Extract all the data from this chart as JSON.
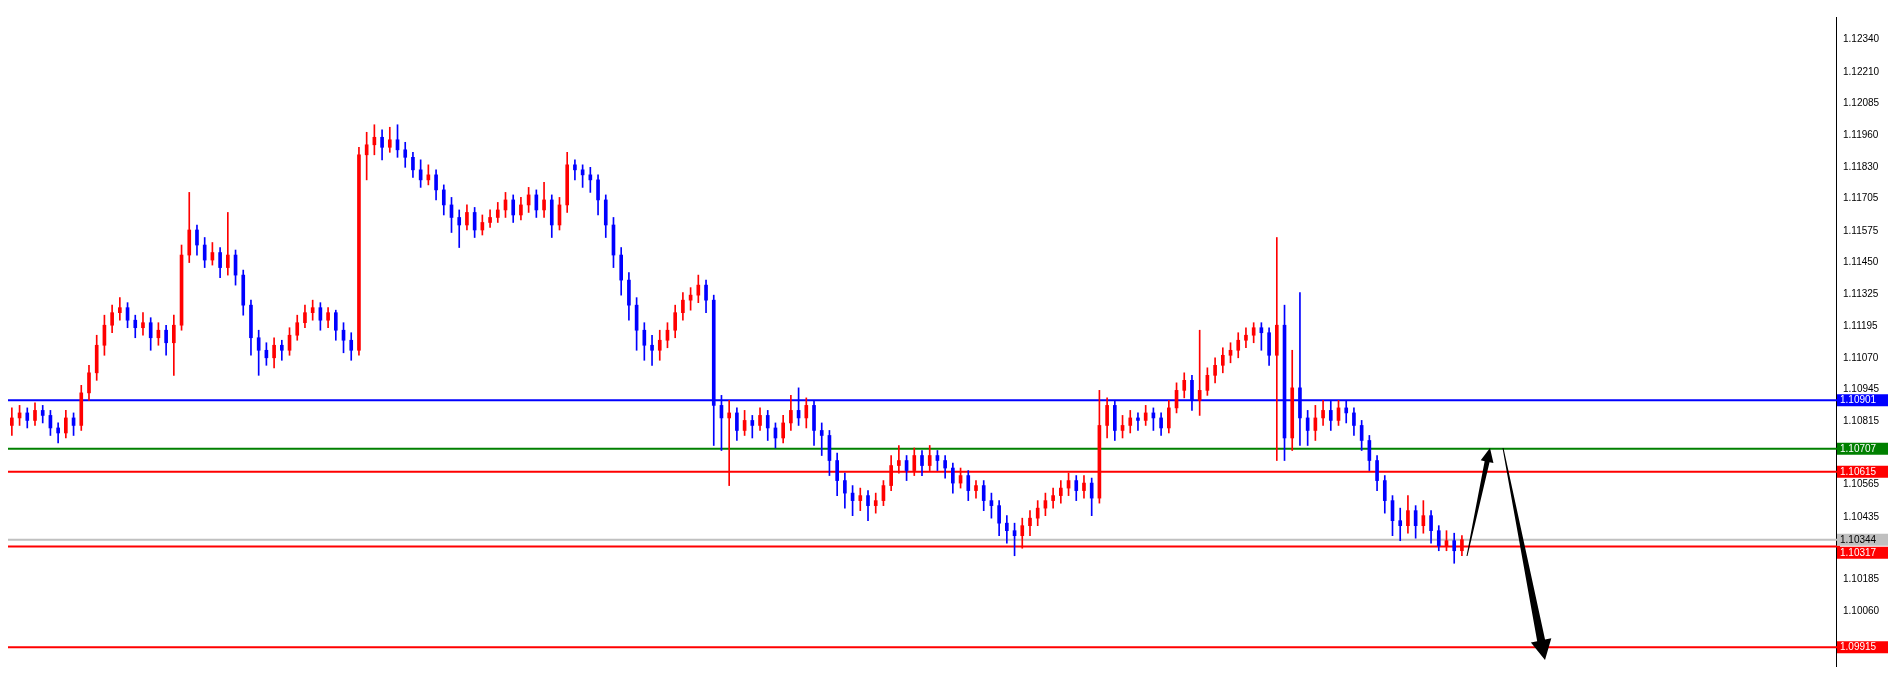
{
  "chart_data": {
    "type": "candlestick",
    "tick_labels": "y",
    "categories": [
      null,
      null,
      null,
      null,
      null,
      null,
      null,
      null,
      null,
      null,
      null,
      null,
      null,
      null,
      null,
      null,
      null,
      null,
      null,
      null,
      null,
      null,
      null,
      null,
      null,
      null,
      null,
      null,
      null,
      null,
      null,
      null,
      null,
      null,
      null,
      null,
      null,
      null,
      null,
      null,
      null,
      null,
      null,
      null,
      null,
      null,
      null,
      null,
      null,
      null,
      null,
      null,
      null,
      null,
      null,
      null,
      null,
      null,
      null,
      null,
      null,
      null,
      null,
      null,
      null,
      null,
      null,
      null,
      null,
      null,
      null,
      null,
      null,
      null,
      null,
      null,
      null,
      null,
      null,
      null,
      null,
      null,
      null,
      null,
      null,
      null,
      null,
      null,
      null,
      null,
      null,
      null,
      null,
      null,
      null,
      null,
      null,
      null,
      null,
      null,
      null,
      null,
      null,
      null,
      null,
      null,
      null,
      null,
      null,
      null,
      null,
      null,
      null,
      null,
      null,
      null,
      null,
      null,
      null,
      null,
      null,
      null,
      null,
      null,
      null,
      null,
      null,
      null,
      null,
      null,
      null,
      null,
      null,
      null,
      null,
      null,
      null,
      null,
      null,
      null,
      null,
      null,
      null,
      null,
      null,
      null,
      null,
      null,
      null,
      null,
      null,
      null,
      null,
      null,
      null,
      null,
      null,
      null,
      null,
      null,
      null,
      null,
      null,
      null,
      null,
      null,
      null,
      null,
      null,
      null,
      null,
      null,
      null,
      null,
      null,
      null,
      null,
      null,
      null,
      null,
      null,
      null,
      null,
      null,
      null,
      null,
      null,
      null,
      null,
      null,
      null,
      null,
      null,
      null,
      null,
      null,
      null,
      null,
      null,
      null,
      null,
      null,
      null,
      null,
      null,
      null,
      null,
      null,
      null,
      null,
      null,
      null,
      null,
      null,
      null,
      null,
      null,
      null,
      null,
      null,
      null,
      null,
      null,
      null,
      null,
      null,
      null,
      null,
      null,
      null,
      null,
      null,
      null,
      null,
      null,
      null,
      null
    ],
    "ohlc": [
      [
        1.108,
        1.1087,
        1.1076,
        1.1083
      ],
      [
        1.1083,
        1.1088,
        1.108,
        1.1085
      ],
      [
        1.1085,
        1.1087,
        1.1079,
        1.1082
      ],
      [
        1.1082,
        1.1089,
        1.108,
        1.1086
      ],
      [
        1.1086,
        1.1088,
        1.1081,
        1.1084
      ],
      [
        1.1084,
        1.1086,
        1.1076,
        1.1079
      ],
      [
        1.1079,
        1.1081,
        1.1073,
        1.1077
      ],
      [
        1.1077,
        1.1086,
        1.1075,
        1.1083
      ],
      [
        1.1083,
        1.1085,
        1.1076,
        1.108
      ],
      [
        1.108,
        1.1096,
        1.1078,
        1.1093
      ],
      [
        1.1093,
        1.1104,
        1.109,
        1.1101
      ],
      [
        1.1101,
        1.1116,
        1.1098,
        1.1112
      ],
      [
        1.1112,
        1.1124,
        1.1108,
        1.112
      ],
      [
        1.112,
        1.1128,
        1.1117,
        1.1125
      ],
      [
        1.1125,
        1.1131,
        1.1122,
        1.1127
      ],
      [
        1.1127,
        1.1129,
        1.1119,
        1.1122
      ],
      [
        1.1122,
        1.1124,
        1.1115,
        1.1119
      ],
      [
        1.1119,
        1.1125,
        1.1116,
        1.1121
      ],
      [
        1.1121,
        1.1123,
        1.111,
        1.1115
      ],
      [
        1.1115,
        1.1121,
        1.1112,
        1.1118
      ],
      [
        1.1118,
        1.112,
        1.1108,
        1.1113
      ],
      [
        1.1113,
        1.1124,
        1.11,
        1.112
      ],
      [
        1.112,
        1.1152,
        1.1118,
        1.1148
      ],
      [
        1.1148,
        1.1173,
        1.1145,
        1.1158
      ],
      [
        1.1158,
        1.116,
        1.1148,
        1.1152
      ],
      [
        1.1152,
        1.1155,
        1.1143,
        1.1146
      ],
      [
        1.1146,
        1.1153,
        1.1144,
        1.1149
      ],
      [
        1.1149,
        1.1151,
        1.1139,
        1.1143
      ],
      [
        1.1143,
        1.1165,
        1.114,
        1.1148
      ],
      [
        1.1148,
        1.115,
        1.1136,
        1.114
      ],
      [
        1.114,
        1.1142,
        1.1124,
        1.1128
      ],
      [
        1.1128,
        1.113,
        1.1108,
        1.1115
      ],
      [
        1.1115,
        1.1118,
        1.11,
        1.111
      ],
      [
        1.111,
        1.1113,
        1.1104,
        1.1107
      ],
      [
        1.1107,
        1.1115,
        1.1103,
        1.1112
      ],
      [
        1.1112,
        1.1114,
        1.1106,
        1.111
      ],
      [
        1.111,
        1.1119,
        1.1108,
        1.1116
      ],
      [
        1.1116,
        1.1124,
        1.1114,
        1.1121
      ],
      [
        1.1121,
        1.1128,
        1.1119,
        1.1125
      ],
      [
        1.1125,
        1.113,
        1.1122,
        1.1127
      ],
      [
        1.1127,
        1.1129,
        1.1118,
        1.1122
      ],
      [
        1.1122,
        1.1127,
        1.1119,
        1.1125
      ],
      [
        1.1125,
        1.1126,
        1.1114,
        1.1118
      ],
      [
        1.1118,
        1.1121,
        1.1109,
        1.1114
      ],
      [
        1.1114,
        1.1117,
        1.1106,
        1.111
      ],
      [
        1.111,
        1.1191,
        1.1108,
        1.1188
      ],
      [
        1.1188,
        1.1197,
        1.1178,
        1.1192
      ],
      [
        1.1192,
        1.12,
        1.1188,
        1.1195
      ],
      [
        1.1195,
        1.1198,
        1.1186,
        1.1191
      ],
      [
        1.1191,
        1.1199,
        1.1189,
        1.1194
      ],
      [
        1.1194,
        1.12,
        1.1187,
        1.119
      ],
      [
        1.119,
        1.1193,
        1.1183,
        1.1187
      ],
      [
        1.1187,
        1.1189,
        1.1179,
        1.1182
      ],
      [
        1.1182,
        1.1186,
        1.1175,
        1.1178
      ],
      [
        1.1178,
        1.1184,
        1.1176,
        1.118
      ],
      [
        1.118,
        1.1182,
        1.117,
        1.1174
      ],
      [
        1.1174,
        1.1176,
        1.1164,
        1.1168
      ],
      [
        1.1168,
        1.1171,
        1.1157,
        1.1163
      ],
      [
        1.1163,
        1.1166,
        1.1151,
        1.116
      ],
      [
        1.116,
        1.1168,
        1.1158,
        1.1165
      ],
      [
        1.1165,
        1.1167,
        1.1155,
        1.1158
      ],
      [
        1.1158,
        1.1164,
        1.1156,
        1.1161
      ],
      [
        1.1161,
        1.1166,
        1.1159,
        1.1163
      ],
      [
        1.1163,
        1.1169,
        1.1161,
        1.1166
      ],
      [
        1.1166,
        1.1173,
        1.1163,
        1.117
      ],
      [
        1.117,
        1.1172,
        1.1161,
        1.1164
      ],
      [
        1.1164,
        1.1171,
        1.1162,
        1.1168
      ],
      [
        1.1168,
        1.1175,
        1.1165,
        1.1172
      ],
      [
        1.1172,
        1.1174,
        1.1163,
        1.1166
      ],
      [
        1.1166,
        1.1177,
        1.1163,
        1.117
      ],
      [
        1.117,
        1.1172,
        1.1155,
        1.116
      ],
      [
        1.116,
        1.1171,
        1.1158,
        1.1168
      ],
      [
        1.1168,
        1.1189,
        1.1165,
        1.1184
      ],
      [
        1.1184,
        1.1186,
        1.1178,
        1.1182
      ],
      [
        1.1182,
        1.1184,
        1.1175,
        1.118
      ],
      [
        1.118,
        1.1183,
        1.1173,
        1.1178
      ],
      [
        1.1178,
        1.118,
        1.1164,
        1.117
      ],
      [
        1.117,
        1.1172,
        1.1155,
        1.116
      ],
      [
        1.116,
        1.1163,
        1.1143,
        1.1148
      ],
      [
        1.1148,
        1.1151,
        1.1132,
        1.1138
      ],
      [
        1.1138,
        1.1141,
        1.1122,
        1.1128
      ],
      [
        1.1128,
        1.1131,
        1.111,
        1.1118
      ],
      [
        1.1118,
        1.1121,
        1.1106,
        1.1112
      ],
      [
        1.1112,
        1.1116,
        1.1104,
        1.111
      ],
      [
        1.111,
        1.1118,
        1.1106,
        1.1114
      ],
      [
        1.1114,
        1.1121,
        1.1111,
        1.1118
      ],
      [
        1.1118,
        1.1128,
        1.1115,
        1.1125
      ],
      [
        1.1125,
        1.1133,
        1.1122,
        1.113
      ],
      [
        1.113,
        1.1135,
        1.1126,
        1.1132
      ],
      [
        1.1132,
        1.114,
        1.1129,
        1.1136
      ],
      [
        1.1136,
        1.1138,
        1.1125,
        1.113
      ],
      [
        1.113,
        1.1132,
        1.1072,
        1.1088
      ],
      [
        1.1088,
        1.1092,
        1.107,
        1.1083
      ],
      [
        1.1083,
        1.109,
        1.1056,
        1.1085
      ],
      [
        1.1085,
        1.1087,
        1.1074,
        1.1078
      ],
      [
        1.1078,
        1.1086,
        1.1076,
        1.1082
      ],
      [
        1.1082,
        1.1084,
        1.1075,
        1.108
      ],
      [
        1.108,
        1.1087,
        1.1078,
        1.1084
      ],
      [
        1.1084,
        1.1086,
        1.1074,
        1.1079
      ],
      [
        1.1079,
        1.1081,
        1.1071,
        1.1075
      ],
      [
        1.1075,
        1.1084,
        1.1073,
        1.1081
      ],
      [
        1.1081,
        1.1092,
        1.1078,
        1.1086
      ],
      [
        1.1086,
        1.1095,
        1.108,
        1.1083
      ],
      [
        1.1083,
        1.1091,
        1.1079,
        1.1088
      ],
      [
        1.1088,
        1.109,
        1.1072,
        1.1078
      ],
      [
        1.1078,
        1.1081,
        1.1068,
        1.1076
      ],
      [
        1.1076,
        1.1078,
        1.106,
        1.1066
      ],
      [
        1.1066,
        1.1069,
        1.1052,
        1.1058
      ],
      [
        1.1058,
        1.1061,
        1.1047,
        1.1053
      ],
      [
        1.1053,
        1.1056,
        1.1044,
        1.105
      ],
      [
        1.105,
        1.1055,
        1.1046,
        1.1052
      ],
      [
        1.1052,
        1.1054,
        1.1042,
        1.1048
      ],
      [
        1.1048,
        1.1053,
        1.1045,
        1.105
      ],
      [
        1.105,
        1.1058,
        1.1048,
        1.1056
      ],
      [
        1.1056,
        1.1068,
        1.1054,
        1.1064
      ],
      [
        1.1064,
        1.1072,
        1.1061,
        1.1066
      ],
      [
        1.1066,
        1.1068,
        1.1058,
        1.1062
      ],
      [
        1.1062,
        1.1071,
        1.106,
        1.1068
      ],
      [
        1.1068,
        1.107,
        1.106,
        1.1064
      ],
      [
        1.1064,
        1.1072,
        1.1062,
        1.1068
      ],
      [
        1.1068,
        1.107,
        1.1062,
        1.1066
      ],
      [
        1.1066,
        1.1068,
        1.1059,
        1.1063
      ],
      [
        1.1063,
        1.1065,
        1.1053,
        1.1057
      ],
      [
        1.1057,
        1.1063,
        1.1055,
        1.106
      ],
      [
        1.106,
        1.1062,
        1.105,
        1.1054
      ],
      [
        1.1054,
        1.1058,
        1.1051,
        1.1056
      ],
      [
        1.1056,
        1.1058,
        1.1046,
        1.105
      ],
      [
        1.105,
        1.1053,
        1.1043,
        1.1048
      ],
      [
        1.1048,
        1.105,
        1.1036,
        1.1041
      ],
      [
        1.1041,
        1.1044,
        1.1033,
        1.1038
      ],
      [
        1.1038,
        1.1041,
        1.1028,
        1.1036
      ],
      [
        1.1036,
        1.1043,
        1.1031,
        1.104
      ],
      [
        1.104,
        1.1046,
        1.1036,
        1.1043
      ],
      [
        1.1043,
        1.105,
        1.104,
        1.1047
      ],
      [
        1.1047,
        1.1053,
        1.1044,
        1.105
      ],
      [
        1.105,
        1.1055,
        1.1047,
        1.1052
      ],
      [
        1.1052,
        1.1058,
        1.1049,
        1.1055
      ],
      [
        1.1055,
        1.1061,
        1.1052,
        1.1058
      ],
      [
        1.1058,
        1.106,
        1.105,
        1.1054
      ],
      [
        1.1054,
        1.106,
        1.1051,
        1.1057
      ],
      [
        1.1057,
        1.1059,
        1.1044,
        1.1051
      ],
      [
        1.1051,
        1.1094,
        1.1049,
        1.108
      ],
      [
        1.108,
        1.1091,
        1.1075,
        1.1088
      ],
      [
        1.1088,
        1.109,
        1.1074,
        1.1078
      ],
      [
        1.1078,
        1.1084,
        1.1075,
        1.108
      ],
      [
        1.108,
        1.1086,
        1.1077,
        1.1083
      ],
      [
        1.1083,
        1.1085,
        1.1078,
        1.1082
      ],
      [
        1.1082,
        1.1088,
        1.108,
        1.1085
      ],
      [
        1.1085,
        1.1087,
        1.1078,
        1.1083
      ],
      [
        1.1083,
        1.1085,
        1.1076,
        1.1079
      ],
      [
        1.1079,
        1.109,
        1.1077,
        1.1087
      ],
      [
        1.1087,
        1.1097,
        1.1085,
        1.1094
      ],
      [
        1.1094,
        1.1101,
        1.1091,
        1.1098
      ],
      [
        1.1098,
        1.11,
        1.1086,
        1.109
      ],
      [
        1.109,
        1.1118,
        1.1084,
        1.1094
      ],
      [
        1.1094,
        1.1103,
        1.1092,
        1.11
      ],
      [
        1.11,
        1.1107,
        1.1097,
        1.1104
      ],
      [
        1.1104,
        1.1111,
        1.1101,
        1.1108
      ],
      [
        1.1108,
        1.1113,
        1.1105,
        1.111
      ],
      [
        1.111,
        1.1117,
        1.1107,
        1.1114
      ],
      [
        1.1114,
        1.1119,
        1.1111,
        1.1116
      ],
      [
        1.1116,
        1.1121,
        1.1113,
        1.1119
      ],
      [
        1.1119,
        1.1121,
        1.111,
        1.1117
      ],
      [
        1.1117,
        1.1119,
        1.1104,
        1.1108
      ],
      [
        1.1108,
        1.1155,
        1.1066,
        1.112
      ],
      [
        1.112,
        1.1128,
        1.1066,
        1.1075
      ],
      [
        1.1075,
        1.111,
        1.107,
        1.1095
      ],
      [
        1.1095,
        1.1133,
        1.1072,
        1.1083
      ],
      [
        1.1083,
        1.1086,
        1.1072,
        1.1078
      ],
      [
        1.1078,
        1.1088,
        1.1074,
        1.1083
      ],
      [
        1.1083,
        1.109,
        1.108,
        1.1086
      ],
      [
        1.1086,
        1.109,
        1.1078,
        1.1082
      ],
      [
        1.1082,
        1.109,
        1.108,
        1.1087
      ],
      [
        1.1087,
        1.109,
        1.1081,
        1.1085
      ],
      [
        1.1085,
        1.1087,
        1.1076,
        1.108
      ],
      [
        1.108,
        1.1082,
        1.107,
        1.1074
      ],
      [
        1.1074,
        1.1076,
        1.1062,
        1.1066
      ],
      [
        1.1066,
        1.1068,
        1.1054,
        1.1058
      ],
      [
        1.1058,
        1.106,
        1.1045,
        1.105
      ],
      [
        1.105,
        1.1052,
        1.1036,
        1.1042
      ],
      [
        1.1042,
        1.1047,
        1.1034,
        1.104
      ],
      [
        1.104,
        1.1052,
        1.1037,
        1.1046
      ],
      [
        1.1046,
        1.1048,
        1.1035,
        1.104
      ],
      [
        1.104,
        1.105,
        1.1037,
        1.1044
      ],
      [
        1.1044,
        1.1046,
        1.1033,
        1.1038
      ],
      [
        1.1038,
        1.104,
        1.103,
        1.1032
      ],
      [
        1.1032,
        1.1038,
        1.103,
        1.1034
      ],
      [
        1.1034,
        1.1037,
        1.1025,
        1.103
      ],
      [
        1.103,
        1.1036,
        1.1028,
        1.10344
      ],
      null,
      null,
      null,
      null,
      null,
      null,
      null,
      null,
      null,
      null,
      null,
      null,
      null,
      null,
      null,
      null,
      null,
      null,
      null,
      null,
      null,
      null,
      null,
      null,
      null,
      null,
      null,
      null,
      null,
      null,
      null,
      null,
      null,
      null,
      null,
      null,
      null,
      null,
      null,
      null,
      null,
      null,
      null,
      null,
      null,
      null,
      null,
      null
    ],
    "colors": [
      "#ff0000",
      "#ff0000",
      "#0000ff",
      "#ff0000",
      "#0000ff",
      "#0000ff",
      "#0000ff",
      "#ff0000",
      "#0000ff",
      "#ff0000",
      "#ff0000",
      "#ff0000",
      "#ff0000",
      "#ff0000",
      "#ff0000",
      "#0000ff",
      "#0000ff",
      "#ff0000",
      "#0000ff",
      "#ff0000",
      "#0000ff",
      "#ff0000",
      "#ff0000",
      "#ff0000",
      "#0000ff",
      "#0000ff",
      "#ff0000",
      "#0000ff",
      "#ff0000",
      "#0000ff",
      "#0000ff",
      "#0000ff",
      "#0000ff",
      "#0000ff",
      "#ff0000",
      "#0000ff",
      "#ff0000",
      "#ff0000",
      "#ff0000",
      "#ff0000",
      "#0000ff",
      "#ff0000",
      "#0000ff",
      "#0000ff",
      "#0000ff",
      "#ff0000",
      "#ff0000",
      "#ff0000",
      "#0000ff",
      "#ff0000",
      "#0000ff",
      "#0000ff",
      "#0000ff",
      "#0000ff",
      "#ff0000",
      "#0000ff",
      "#0000ff",
      "#0000ff",
      "#0000ff",
      "#ff0000",
      "#0000ff",
      "#ff0000",
      "#ff0000",
      "#ff0000",
      "#ff0000",
      "#0000ff",
      "#ff0000",
      "#ff0000",
      "#0000ff",
      "#ff0000",
      "#0000ff",
      "#ff0000",
      "#ff0000",
      "#0000ff",
      "#0000ff",
      "#0000ff",
      "#0000ff",
      "#0000ff",
      "#0000ff",
      "#0000ff",
      "#0000ff",
      "#0000ff",
      "#0000ff",
      "#0000ff",
      "#ff0000",
      "#ff0000",
      "#ff0000",
      "#ff0000",
      "#ff0000",
      "#ff0000",
      "#0000ff",
      "#0000ff",
      "#0000ff",
      "#ff0000",
      "#0000ff",
      "#ff0000",
      "#0000ff",
      "#ff0000",
      "#0000ff",
      "#0000ff",
      "#ff0000",
      "#ff0000",
      "#0000ff",
      "#ff0000",
      "#0000ff",
      "#0000ff",
      "#0000ff",
      "#0000ff",
      "#0000ff",
      "#0000ff",
      "#ff0000",
      "#0000ff",
      "#ff0000",
      "#ff0000",
      "#ff0000",
      "#ff0000",
      "#0000ff",
      "#ff0000",
      "#0000ff",
      "#ff0000",
      "#0000ff",
      "#0000ff",
      "#0000ff",
      "#ff0000",
      "#0000ff",
      "#ff0000",
      "#0000ff",
      "#0000ff",
      "#0000ff",
      "#0000ff",
      "#0000ff",
      "#ff0000",
      "#ff0000",
      "#ff0000",
      "#ff0000",
      "#ff0000",
      "#ff0000",
      "#ff0000",
      "#0000ff",
      "#ff0000",
      "#0000ff",
      "#ff0000",
      "#ff0000",
      "#0000ff",
      "#ff0000",
      "#ff0000",
      "#0000ff",
      "#ff0000",
      "#0000ff",
      "#0000ff",
      "#ff0000",
      "#ff0000",
      "#ff0000",
      "#0000ff",
      "#ff0000",
      "#ff0000",
      "#ff0000",
      "#ff0000",
      "#ff0000",
      "#ff0000",
      "#ff0000",
      "#ff0000",
      "#0000ff",
      "#0000ff",
      "#ff0000",
      "#0000ff",
      "#ff0000",
      "#0000ff",
      "#0000ff",
      "#ff0000",
      "#ff0000",
      "#0000ff",
      "#ff0000",
      "#0000ff",
      "#0000ff",
      "#0000ff",
      "#0000ff",
      "#0000ff",
      "#0000ff",
      "#0000ff",
      "#0000ff",
      "#ff0000",
      "#0000ff",
      "#ff0000",
      "#0000ff",
      "#0000ff",
      "#ff0000",
      "#0000ff",
      "#ff0000",
      null,
      null,
      null,
      null,
      null,
      null,
      null,
      null,
      null,
      null,
      null,
      null,
      null,
      null,
      null,
      null,
      null,
      null,
      null,
      null,
      null,
      null,
      null,
      null,
      null,
      null,
      null,
      null,
      null,
      null,
      null,
      null,
      null,
      null,
      null,
      null,
      null,
      null,
      null,
      null,
      null,
      null,
      null,
      null,
      null,
      null,
      null,
      null
    ],
    "ylim": [
      1.0984,
      1.1243
    ],
    "yticks": [
      {
        "value": 1.1234,
        "label": "1.12340"
      },
      {
        "value": 1.1221,
        "label": "1.12210"
      },
      1.12085,
      {
        "value": 1.1196,
        "label": "1.11960"
      },
      {
        "value": 1.1183,
        "label": "1.11830"
      },
      1.11705,
      1.11575,
      {
        "value": 1.1145,
        "label": "1.11450"
      },
      1.11325,
      1.11195,
      {
        "value": 1.1107,
        "label": "1.11070"
      },
      1.10945,
      1.10815,
      1.10565,
      1.10435,
      1.10185,
      {
        "value": 1.1006,
        "label": "1.10060"
      }
    ],
    "ref_lines": [
      {
        "axis": "y",
        "value": 1.10901,
        "label": "1.10901",
        "color": "#0000ff"
      },
      {
        "axis": "y",
        "value": 1.10707,
        "label": "1.10707",
        "color": "#008000"
      },
      {
        "axis": "y",
        "value": 1.10615,
        "label": "1.10615",
        "color": "#ff0000"
      },
      {
        "axis": "y",
        "value": 1.10344,
        "label": "1.10344",
        "color": "#c0c0c0"
      },
      {
        "axis": "y",
        "value": 1.10317,
        "label": "1.10317",
        "color": "#ff0000"
      },
      {
        "axis": "y",
        "value": 1.09915,
        "label": "1.09915",
        "color": "#ff0000"
      }
    ]
  }
}
